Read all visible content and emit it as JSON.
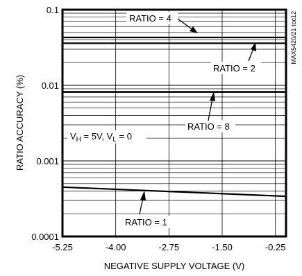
{
  "chart_data": {
    "type": "line",
    "title": "",
    "xlabel": "NEGATIVE SUPPLY VOLTAGE (V)",
    "ylabel": "RATIO ACCURACY (%)",
    "x_scale": "linear",
    "y_scale": "log",
    "xlim": [
      -5.25,
      0
    ],
    "ylim": [
      0.0001,
      0.1
    ],
    "x_ticks": [
      -5.25,
      -4.0,
      -2.75,
      -1.5,
      -0.25
    ],
    "x_tick_labels": [
      "-5.25",
      "-4.00",
      "-2.75",
      "-1.50",
      "-0.25"
    ],
    "y_ticks": [
      0.0001,
      0.001,
      0.01,
      0.1
    ],
    "y_tick_labels": [
      "0.0001",
      "0.001",
      "0.01",
      "0.1"
    ],
    "grid": true,
    "series": [
      {
        "name": "RATIO = 4",
        "x": [
          -5.25,
          0
        ],
        "y": [
          0.043,
          0.043
        ]
      },
      {
        "name": "RATIO = 2",
        "x": [
          -5.25,
          0
        ],
        "y": [
          0.036,
          0.036
        ]
      },
      {
        "name": "RATIO = 8",
        "x": [
          -5.25,
          0
        ],
        "y": [
          0.0082,
          0.0082
        ]
      },
      {
        "name": "RATIO = 1",
        "x": [
          -5.25,
          0
        ],
        "y": [
          0.00045,
          0.00034
        ]
      }
    ],
    "annotations": {
      "ratio4": "RATIO = 4",
      "ratio2": "RATIO = 2",
      "ratio8": "RATIO = 8",
      "ratio1": "RATIO = 1",
      "conditions_vh": "V",
      "conditions_vh_sub": "H",
      "conditions_mid": " = 5V, V",
      "conditions_vl_sub": "L",
      "conditions_end": " = 0"
    },
    "watermark": "MAX5420/21 toc12"
  }
}
